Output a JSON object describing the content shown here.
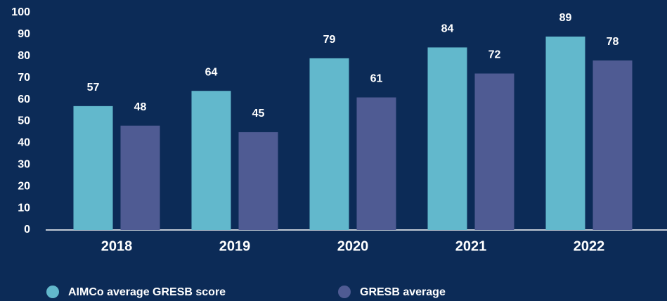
{
  "chart_data": {
    "type": "bar",
    "categories": [
      "2018",
      "2019",
      "2020",
      "2021",
      "2022"
    ],
    "series": [
      {
        "name": "AIMCo average GRESB score",
        "color": "#62b8cc",
        "values": [
          57,
          64,
          79,
          84,
          89
        ]
      },
      {
        "name": "GRESB average",
        "color": "#4f5b93",
        "values": [
          48,
          45,
          61,
          72,
          78
        ]
      }
    ],
    "ylim": [
      0,
      100
    ],
    "yticks": [
      0,
      10,
      20,
      30,
      40,
      50,
      60,
      70,
      80,
      90,
      100
    ],
    "grid": false,
    "legend": "bottom"
  }
}
